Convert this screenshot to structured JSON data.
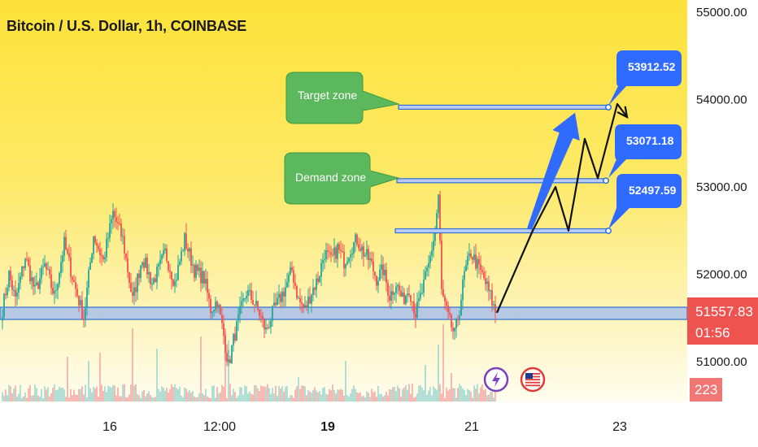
{
  "header": {
    "title": "Bitcoin / U.S. Dollar, 1h, COINBASE"
  },
  "price_scale": {
    "ticks": [
      "55000.00",
      "54000.00",
      "53000.00",
      "52000.00",
      "51000.00"
    ],
    "current_price": "51557.83",
    "countdown": "01:56",
    "volume_value": "223"
  },
  "time_axis": {
    "ticks": [
      "16",
      "12:00",
      "19",
      "21",
      "23"
    ]
  },
  "annotations": {
    "target_zone_label": "Target zone",
    "demand_zone_label": "Demand zone",
    "level_labels": [
      "53912.52",
      "53071.18",
      "52497.59"
    ]
  },
  "colors": {
    "up": "#26a69a",
    "down": "#ef5350",
    "volume_up": "#9fd6cf",
    "volume_down": "#f3a9a6",
    "level_line": "#2f6fd6",
    "callout_green": "#5cb85c",
    "callout_blue": "#2f6bff",
    "arrow_blue": "#2f6bff"
  },
  "icons": [
    "lightning-icon",
    "us-flag-icon"
  ],
  "chart_data": {
    "type": "candlestick",
    "title": "Bitcoin / U.S. Dollar, 1h, COINBASE",
    "ylim": [
      50700,
      55000
    ],
    "x_ticks": [
      "16",
      "12:00",
      "19",
      "21",
      "23"
    ],
    "current_price": 51557.83,
    "levels": [
      {
        "label": "Target zone",
        "value": 53912.52
      },
      {
        "label": "Demand zone",
        "value": 53071.18
      },
      {
        "value": 52497.59
      },
      {
        "value": 51557.83
      }
    ],
    "anchors": [
      [
        0,
        51600
      ],
      [
        4,
        52000
      ],
      [
        8,
        51700
      ],
      [
        14,
        52200
      ],
      [
        20,
        51800
      ],
      [
        26,
        52100
      ],
      [
        32,
        51750
      ],
      [
        38,
        52350
      ],
      [
        44,
        51900
      ],
      [
        50,
        51500
      ],
      [
        56,
        52450
      ],
      [
        62,
        52150
      ],
      [
        68,
        52700
      ],
      [
        74,
        52400
      ],
      [
        80,
        51700
      ],
      [
        86,
        52200
      ],
      [
        92,
        51900
      ],
      [
        96,
        52050
      ],
      [
        100,
        52250
      ],
      [
        106,
        51900
      ],
      [
        112,
        52400
      ],
      [
        118,
        52050
      ],
      [
        124,
        51950
      ],
      [
        128,
        51600
      ],
      [
        132,
        51700
      ],
      [
        136,
        51300
      ],
      [
        139,
        50950
      ],
      [
        142,
        51250
      ],
      [
        146,
        51550
      ],
      [
        150,
        51800
      ],
      [
        154,
        51700
      ],
      [
        158,
        51550
      ],
      [
        162,
        51350
      ],
      [
        166,
        51550
      ],
      [
        170,
        51700
      ],
      [
        174,
        51850
      ],
      [
        178,
        52050
      ],
      [
        182,
        51700
      ],
      [
        186,
        51600
      ],
      [
        190,
        51800
      ],
      [
        194,
        51950
      ],
      [
        198,
        52250
      ],
      [
        202,
        52150
      ],
      [
        206,
        52300
      ],
      [
        210,
        52150
      ],
      [
        214,
        52300
      ],
      [
        218,
        52400
      ],
      [
        222,
        52250
      ],
      [
        226,
        52150
      ],
      [
        230,
        51950
      ],
      [
        234,
        52050
      ],
      [
        238,
        51750
      ],
      [
        242,
        51900
      ],
      [
        246,
        51700
      ],
      [
        250,
        51850
      ],
      [
        254,
        51550
      ],
      [
        258,
        51800
      ],
      [
        262,
        52100
      ],
      [
        266,
        52500
      ],
      [
        268,
        52900
      ],
      [
        270,
        51800
      ],
      [
        274,
        51500
      ],
      [
        278,
        51300
      ],
      [
        281,
        51600
      ],
      [
        284,
        52000
      ],
      [
        288,
        52250
      ],
      [
        292,
        52100
      ],
      [
        296,
        51950
      ],
      [
        300,
        51750
      ],
      [
        303,
        51560
      ]
    ],
    "candle_count": 304,
    "volume_spikes": [
      [
        40,
        55
      ],
      [
        53,
        50
      ],
      [
        60,
        60
      ],
      [
        80,
        90
      ],
      [
        95,
        65
      ],
      [
        122,
        80
      ],
      [
        137,
        85
      ],
      [
        139,
        75
      ],
      [
        182,
        30
      ],
      [
        211,
        50
      ],
      [
        260,
        45
      ],
      [
        268,
        70
      ],
      [
        271,
        95
      ],
      [
        276,
        35
      ]
    ],
    "projection_path": [
      [
        51560,
        0
      ],
      [
        52500,
        11
      ],
      [
        53000,
        18
      ],
      [
        52500,
        22
      ],
      [
        53550,
        27
      ],
      [
        53100,
        31
      ],
      [
        53950,
        37
      ],
      [
        53800,
        40
      ]
    ],
    "projection_arrow": [
      [
        52520,
        10
      ],
      [
        53850,
        24
      ]
    ]
  }
}
